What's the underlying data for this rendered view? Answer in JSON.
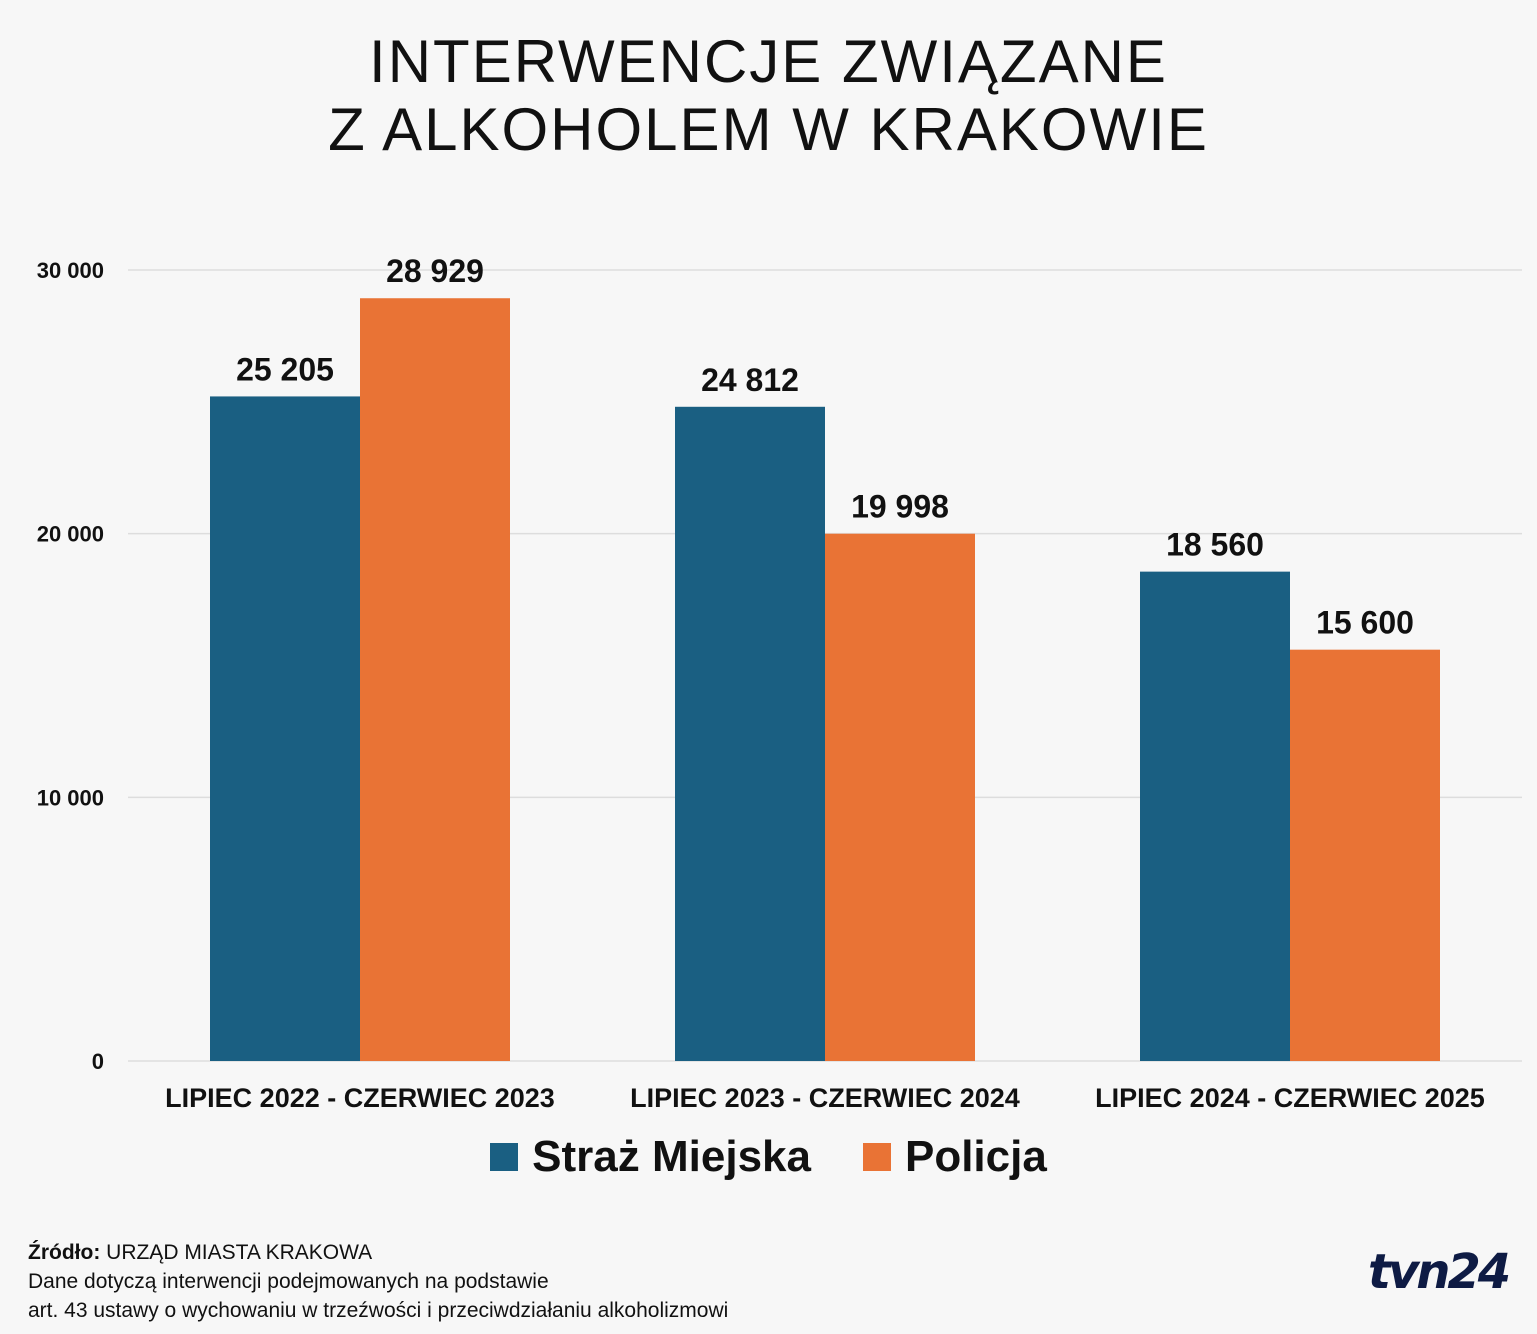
{
  "title_line1": "INTERWENCJE ZWIĄZANE",
  "title_line2": "Z ALKOHOLEM W KRAKOWIE",
  "colors": {
    "straz": "#1a5f82",
    "policja": "#e97335",
    "grid": "#dddddd",
    "background": "#f7f7f7"
  },
  "chart_data": {
    "type": "bar",
    "categories": [
      "LIPIEC 2022 - CZERWIEC 2023",
      "LIPIEC 2023 - CZERWIEC 2024",
      "LIPIEC 2024 - CZERWIEC 2025"
    ],
    "series": [
      {
        "name": "Straż Miejska",
        "values": [
          25205,
          24812,
          18560
        ],
        "labels": [
          "25 205",
          "24 812",
          "18 560"
        ],
        "color": "#1a5f82"
      },
      {
        "name": "Policja",
        "values": [
          28929,
          19998,
          15600
        ],
        "labels": [
          "28 929",
          "19 998",
          "15 600"
        ],
        "color": "#e97335"
      }
    ],
    "yticks": [
      0,
      10000,
      20000,
      30000
    ],
    "ytick_labels": [
      "0",
      "10 000",
      "20 000",
      "30 000"
    ],
    "ylim": [
      0,
      30000
    ],
    "grid": true,
    "legend": "bottom-center"
  },
  "legend": {
    "item1": "Straż Miejska",
    "item2": "Policja"
  },
  "footer": {
    "source_label": "Źródło:",
    "source_value": " URZĄD MIASTA KRAKOWA",
    "note1": "Dane dotyczą interwencji podejmowanych na podstawie",
    "note2": "art. 43 ustawy o wychowaniu w trzeźwości i przeciwdziałaniu alkoholizmowi"
  },
  "logo": "tvn24"
}
